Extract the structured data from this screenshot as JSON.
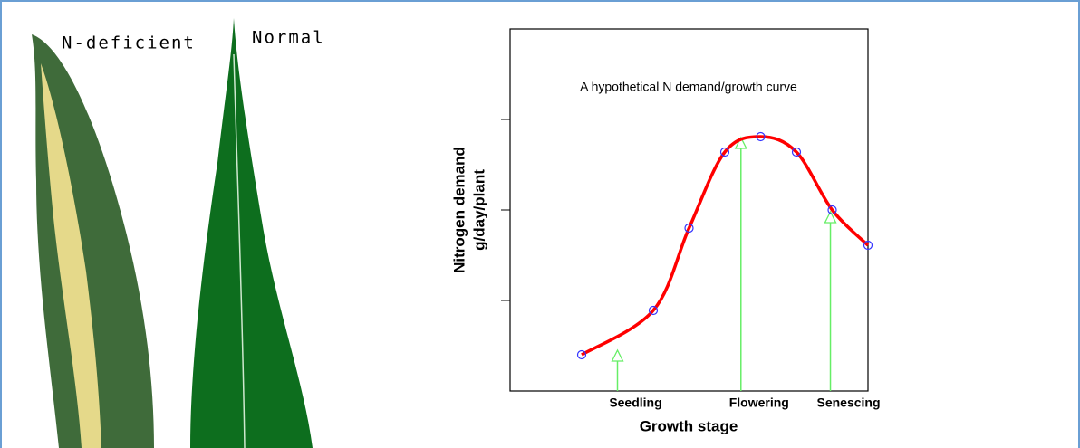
{
  "leaf_labels": [
    "N-deficient",
    "Normal"
  ],
  "chart_data": {
    "type": "line",
    "title": "A hypothetical N demand/growth curve",
    "ylabel": [
      "Nitrogen demand",
      "g/day/plant"
    ],
    "xlabel": "Growth stage",
    "x": [
      2,
      4,
      5,
      6,
      7,
      8,
      9,
      10
    ],
    "series": [
      {
        "color": "#ff0000",
        "marker_color": "#3333ff",
        "values": [
          0.4,
          0.89,
          1.8,
          2.64,
          2.81,
          2.64,
          2.0,
          1.61
        ]
      }
    ],
    "xlim": [
      0,
      10
    ],
    "ylim": [
      0,
      4
    ],
    "yticks": [
      1,
      2,
      3
    ],
    "annotations": [
      {
        "text": "Seedling",
        "x": 3,
        "y": 0.45
      },
      {
        "text": "Flowering",
        "x": 6.45,
        "y": 2.8
      },
      {
        "text": "Senescing",
        "x": 8.95,
        "y": 1.98
      }
    ],
    "annotation_color": "#66ee66"
  }
}
